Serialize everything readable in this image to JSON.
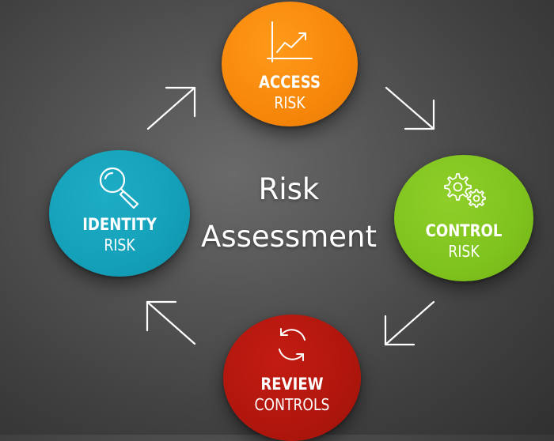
{
  "diagram": {
    "title_line_1": "Risk",
    "title_line_2": "Assessment",
    "nodes": {
      "access": {
        "main": "ACCESS",
        "sub": "RISK",
        "icon": "line-chart-icon",
        "color": "#f7870a"
      },
      "control": {
        "main": "CONTROL",
        "sub": "RISK",
        "icon": "gears-icon",
        "color": "#7fc31e"
      },
      "review": {
        "main": "REVIEW",
        "sub": "CONTROLS",
        "icon": "refresh-cycle-icon",
        "color": "#b0160d"
      },
      "identity": {
        "main": "IDENTITY",
        "sub": "RISK",
        "icon": "magnifier-icon",
        "color": "#14a0b9"
      }
    },
    "flow": [
      "identity",
      "access",
      "control",
      "review"
    ]
  }
}
